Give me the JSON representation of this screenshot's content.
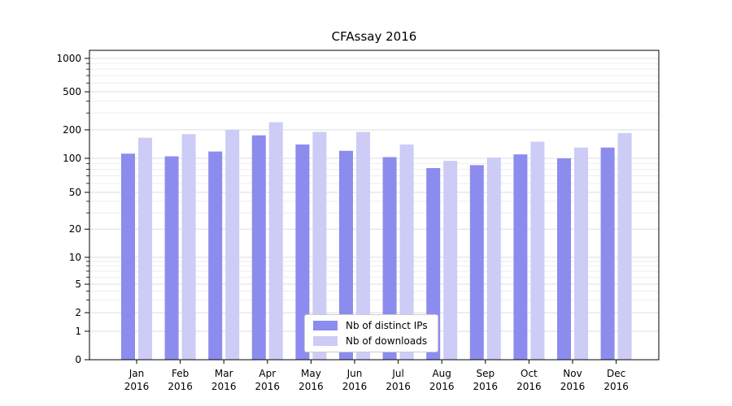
{
  "chart_data": {
    "type": "bar",
    "title": "CFAssay 2016",
    "year_label": "2016",
    "categories": [
      "Jan",
      "Feb",
      "Mar",
      "Apr",
      "May",
      "Jun",
      "Jul",
      "Aug",
      "Sep",
      "Oct",
      "Nov",
      "Dec"
    ],
    "series": [
      {
        "name": "Nb of distinct IPs",
        "color": "#8c8cee",
        "values": [
          112,
          105,
          118,
          175,
          140,
          120,
          103,
          82,
          87,
          110,
          100,
          130
        ]
      },
      {
        "name": "Nb of downloads",
        "color": "#ccccf6",
        "values": [
          165,
          180,
          200,
          240,
          190,
          190,
          140,
          95,
          102,
          150,
          130,
          185
        ]
      }
    ],
    "yticks": [
      0,
      1,
      2,
      5,
      10,
      20,
      50,
      100,
      200,
      500,
      1000
    ],
    "scale": "symlog",
    "ylim": [
      0,
      1200
    ],
    "grid": true,
    "legend_position": "lower-center",
    "axis_color": "#000000",
    "major_grid_color": "#dedede",
    "minor_grid_color": "#eeeeee"
  }
}
